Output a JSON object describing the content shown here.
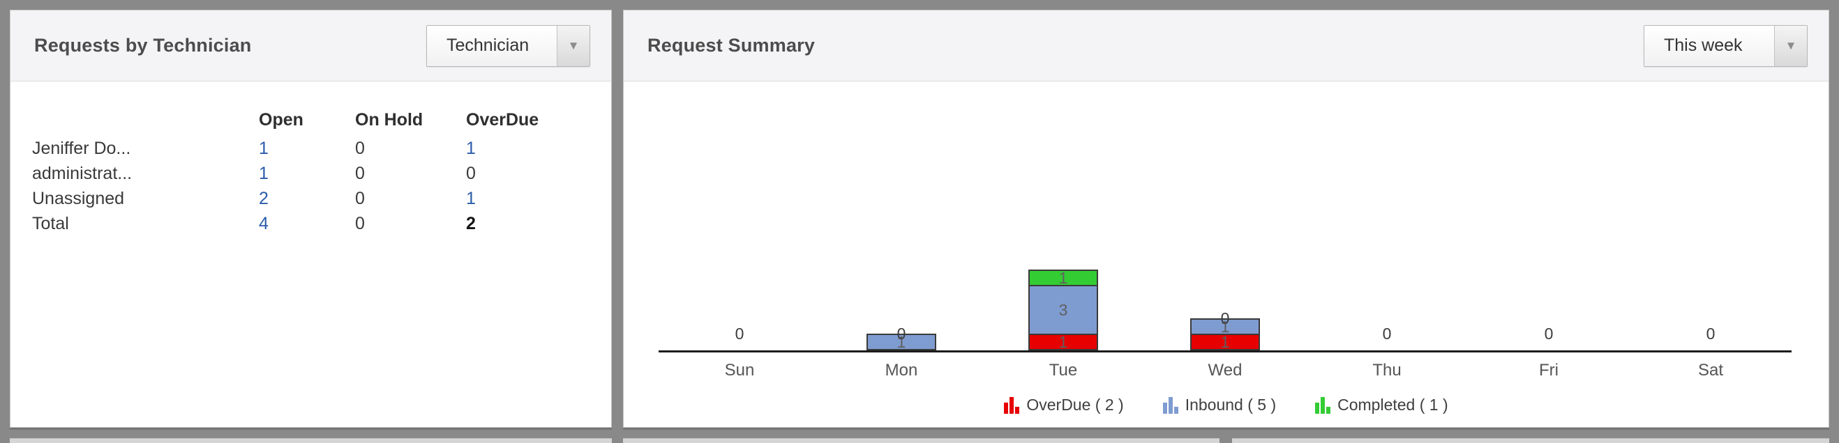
{
  "left_panel": {
    "title": "Requests by Technician",
    "dropdown": {
      "value": "Technician"
    },
    "table": {
      "headers": [
        "Open",
        "On Hold",
        "OverDue"
      ],
      "rows": [
        {
          "name": "Jeniffer Do...",
          "cells": [
            {
              "text": "1",
              "style": "link"
            },
            {
              "text": "0",
              "style": "plain"
            },
            {
              "text": "1",
              "style": "link"
            }
          ]
        },
        {
          "name": "administrat...",
          "cells": [
            {
              "text": "1",
              "style": "link"
            },
            {
              "text": "0",
              "style": "plain"
            },
            {
              "text": "0",
              "style": "plain"
            }
          ]
        },
        {
          "name": "Unassigned",
          "cells": [
            {
              "text": "2",
              "style": "link"
            },
            {
              "text": "0",
              "style": "plain"
            },
            {
              "text": "1",
              "style": "link"
            }
          ]
        },
        {
          "name": "Total",
          "cells": [
            {
              "text": "4",
              "style": "link"
            },
            {
              "text": "0",
              "style": "plain"
            },
            {
              "text": "2",
              "style": "strong"
            }
          ]
        }
      ]
    }
  },
  "right_panel": {
    "title": "Request Summary",
    "dropdown": {
      "value": "This week"
    },
    "chart_data": {
      "type": "bar",
      "stacked": true,
      "title": "Request Summary",
      "categories": [
        "Sun",
        "Mon",
        "Tue",
        "Wed",
        "Thu",
        "Fri",
        "Sat"
      ],
      "series": [
        {
          "name": "OverDue",
          "color": "#e60000",
          "values": [
            0,
            0,
            1,
            1,
            0,
            0,
            0
          ],
          "total": 2
        },
        {
          "name": "Inbound",
          "color": "#7f9cd1",
          "values": [
            0,
            1,
            3,
            1,
            0,
            0,
            0
          ],
          "total": 5
        },
        {
          "name": "Completed",
          "color": "#33cc33",
          "values": [
            0,
            0,
            1,
            0,
            0,
            0,
            0
          ],
          "total": 1
        }
      ],
      "legend": [
        {
          "label": "OverDue ( 2 )",
          "color": "#e60000"
        },
        {
          "label": "Inbound ( 5 )",
          "color": "#7f9cd1"
        },
        {
          "label": "Completed ( 1 )",
          "color": "#33cc33"
        }
      ],
      "ylim": [
        0,
        5
      ],
      "grid": false,
      "legend_position": "bottom"
    }
  },
  "colors": {
    "link_blue": "#2b5caa",
    "bar_border": "#3a3a3a",
    "axis": "#1c1c1c"
  }
}
